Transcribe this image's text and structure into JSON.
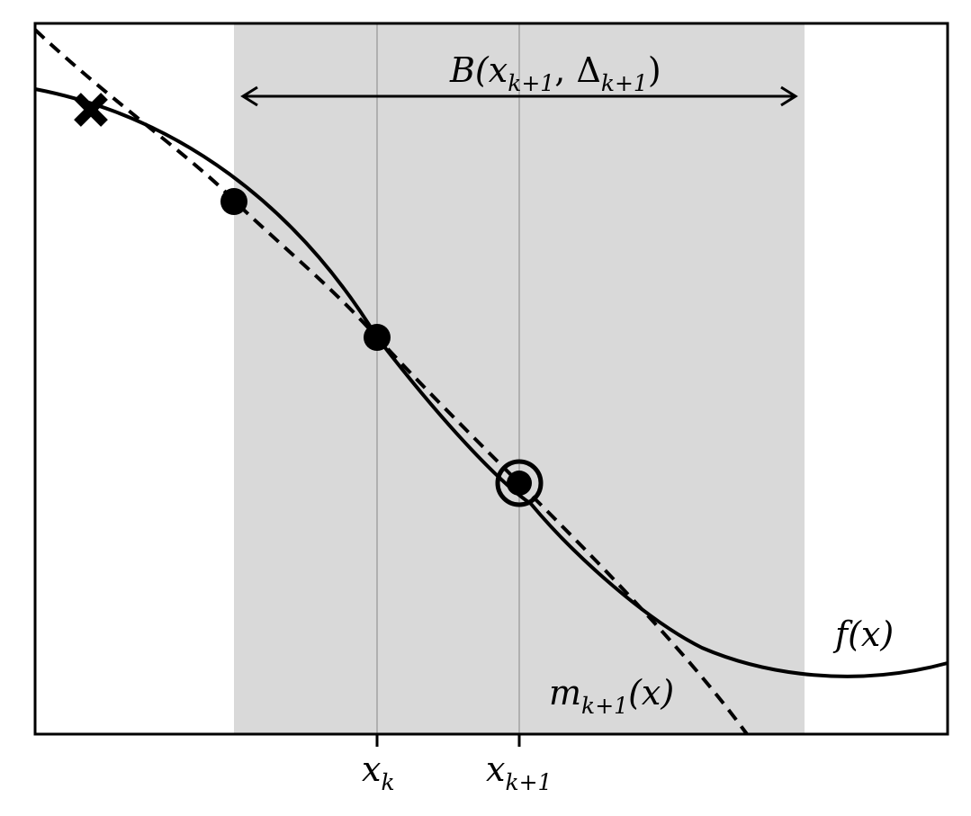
{
  "labels": {
    "trust_region": {
      "base": "B(x",
      "sub1": "k+1",
      "mid": ", Δ",
      "sub2": "k+1",
      "close": ")"
    },
    "function": "f(x)",
    "model": {
      "base": "m",
      "sub": "k+1",
      "args": "(x)"
    },
    "tick_xk": {
      "base": "x",
      "sub": "k"
    },
    "tick_xk1": {
      "base": "x",
      "sub": "k+1"
    }
  },
  "colors": {
    "region_fill": "#d9d9d9",
    "guide_line": "#b0b0b0",
    "ink": "#000000"
  },
  "markers": {
    "rejected_point": "x-icon",
    "interpolation_points": "filled-circle",
    "new_iterate": "ringed-circle"
  }
}
